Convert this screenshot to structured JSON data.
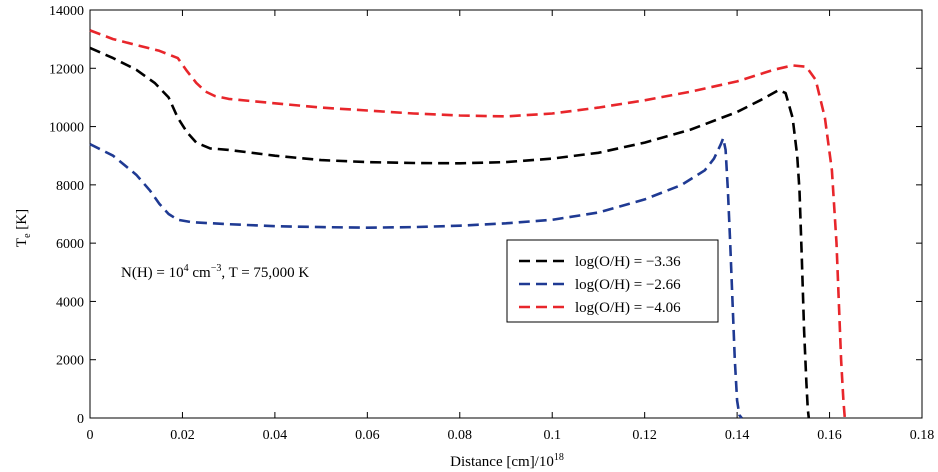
{
  "chart_data": {
    "type": "line",
    "xlabel": "Distance [cm]/10",
    "xlabel_sup": "18",
    "ylabel": "T",
    "ylabel_sub": "e",
    "ylabel_unit": " [K]",
    "xlim": [
      0,
      0.18
    ],
    "ylim": [
      0,
      14000
    ],
    "xticks": [
      0,
      0.02,
      0.04,
      0.06,
      0.08,
      0.1,
      0.12,
      0.14,
      0.16,
      0.18
    ],
    "xtick_labels": [
      "0",
      "0.02",
      "0.04",
      "0.06",
      "0.08",
      "0.1",
      "0.12",
      "0.14",
      "0.16",
      "0.18"
    ],
    "yticks": [
      0,
      2000,
      4000,
      6000,
      8000,
      10000,
      12000,
      14000
    ],
    "ytick_labels": [
      "0",
      "2000",
      "4000",
      "6000",
      "8000",
      "10000",
      "12000",
      "14000"
    ],
    "annotation": {
      "part1": "N(H) = 10",
      "sup1": "4",
      "part2": " cm",
      "sup2": "−3",
      "part3": ", T = 75,000 K"
    },
    "legend_position": "center-right",
    "series": [
      {
        "name": "log(O/H) = −3.36",
        "color": "#000000",
        "x": [
          0,
          0.005,
          0.01,
          0.014,
          0.017,
          0.019,
          0.021,
          0.023,
          0.026,
          0.03,
          0.04,
          0.05,
          0.06,
          0.07,
          0.08,
          0.09,
          0.1,
          0.11,
          0.12,
          0.13,
          0.14,
          0.145,
          0.149,
          0.1505,
          0.152,
          0.153,
          0.1535,
          0.154,
          0.1545,
          0.155,
          0.1553,
          0.1555
        ],
        "y": [
          12700,
          12350,
          11950,
          11500,
          11000,
          10300,
          9800,
          9450,
          9250,
          9200,
          9000,
          8850,
          8780,
          8750,
          8740,
          8780,
          8900,
          9100,
          9450,
          9900,
          10500,
          10900,
          11250,
          11150,
          10300,
          9000,
          7800,
          5500,
          3000,
          1200,
          300,
          0
        ]
      },
      {
        "name": "log(O/H) = −2.66",
        "color": "#1f3a93",
        "x": [
          0,
          0.005,
          0.01,
          0.013,
          0.015,
          0.017,
          0.019,
          0.022,
          0.03,
          0.04,
          0.05,
          0.06,
          0.07,
          0.08,
          0.09,
          0.1,
          0.11,
          0.12,
          0.128,
          0.133,
          0.135,
          0.1365,
          0.137,
          0.1375,
          0.138,
          0.1385,
          0.139,
          0.1395,
          0.14,
          0.1405,
          0.141
        ],
        "y": [
          9400,
          9000,
          8350,
          7800,
          7350,
          7000,
          6800,
          6720,
          6650,
          6580,
          6550,
          6530,
          6550,
          6600,
          6680,
          6800,
          7050,
          7500,
          8000,
          8500,
          8900,
          9400,
          9600,
          9200,
          7800,
          6000,
          4000,
          2000,
          600,
          100,
          0
        ]
      },
      {
        "name": "log(O/H) = −4.06",
        "color": "#e8262b",
        "x": [
          0,
          0.005,
          0.01,
          0.015,
          0.019,
          0.021,
          0.023,
          0.025,
          0.027,
          0.03,
          0.04,
          0.05,
          0.06,
          0.07,
          0.08,
          0.09,
          0.1,
          0.11,
          0.12,
          0.13,
          0.14,
          0.148,
          0.152,
          0.155,
          0.157,
          0.159,
          0.1605,
          0.1615,
          0.162,
          0.1625,
          0.163,
          0.1633
        ],
        "y": [
          13300,
          13000,
          12800,
          12600,
          12350,
          11900,
          11500,
          11200,
          11050,
          10950,
          10800,
          10650,
          10550,
          10450,
          10380,
          10350,
          10450,
          10650,
          10900,
          11200,
          11550,
          11950,
          12100,
          12050,
          11600,
          10300,
          8500,
          6000,
          4000,
          2000,
          600,
          0
        ]
      }
    ]
  }
}
